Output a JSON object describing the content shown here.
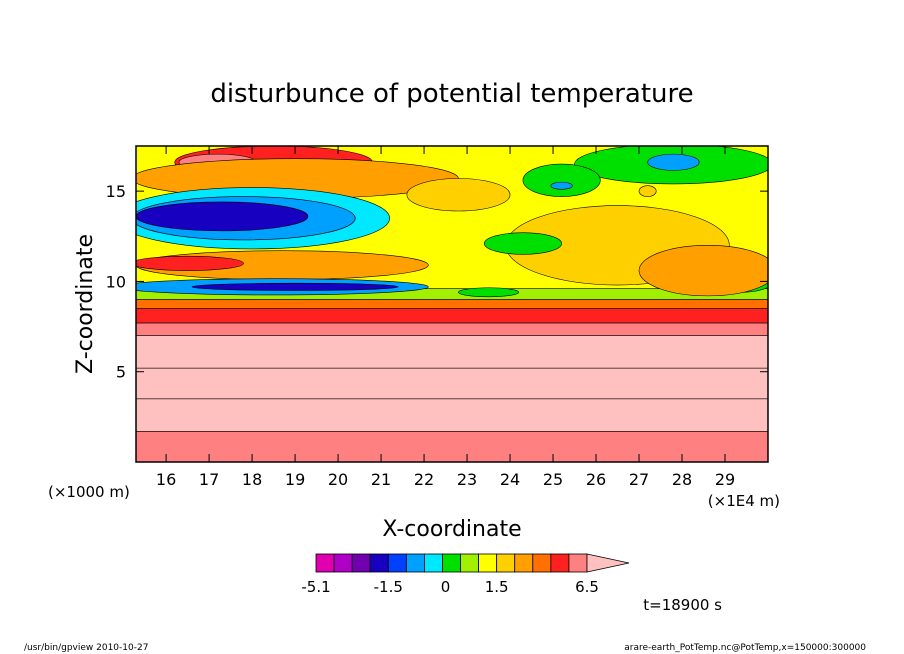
{
  "chart_data": {
    "type": "heatmap",
    "title": "disturbunce of potential temperature",
    "xlabel": "X-coordinate",
    "ylabel": "Z-coordinate",
    "x_unit_left": "(×1000 m)",
    "x_unit_right": "(×1E4 m)",
    "xlim": [
      15.3,
      30.0
    ],
    "ylim": [
      0.0,
      17.5
    ],
    "x_ticks": [
      16,
      17,
      18,
      19,
      20,
      21,
      22,
      23,
      24,
      25,
      26,
      27,
      28,
      29
    ],
    "y_ticks": [
      5,
      10,
      15
    ],
    "time_label": "t=18900 s",
    "footer_left": "/usr/bin/gpview   2010-10-27",
    "footer_right": "arare-earth_PotTemp.nc@PotTemp,x=150000:300000",
    "colorbar": {
      "levels": [
        -5.1,
        -4.1,
        -3.1,
        -2.1,
        -1.5,
        -1.1,
        -0.6,
        -0.1,
        0.5,
        1.0,
        1.5,
        2.5,
        3.5,
        4.5,
        5.5,
        6.5
      ],
      "tick_labels": [
        "-5.1",
        "-1.5",
        "0",
        "1.5",
        "6.5"
      ],
      "colors": [
        "#e000b0",
        "#b000c8",
        "#7000b0",
        "#1800c0",
        "#0040ff",
        "#00a0ff",
        "#00e8ff",
        "#00e000",
        "#a0f000",
        "#ffff00",
        "#ffd000",
        "#ffa000",
        "#ff7000",
        "#ff2020",
        "#ff8080",
        "#ffc0c0"
      ]
    },
    "bands": [
      {
        "z": [
          0.0,
          1.7
        ],
        "value": 4.5
      },
      {
        "z": [
          1.7,
          3.5
        ],
        "value": 5.5
      },
      {
        "z": [
          3.5,
          5.2
        ],
        "value": 6.5
      },
      {
        "z": [
          5.2,
          7.0
        ],
        "value": 5.5
      },
      {
        "z": [
          7.0,
          7.7
        ],
        "value": 4.5
      },
      {
        "z": [
          7.7,
          8.5
        ],
        "value": 3.5
      },
      {
        "z": [
          8.5,
          9.0
        ],
        "value": 2.5
      },
      {
        "z": [
          9.0,
          9.6
        ],
        "value": -0.1
      },
      {
        "z": [
          9.6,
          17.5
        ],
        "value": 0.5
      }
    ],
    "blobs": [
      {
        "x": 18.5,
        "z": 16.6,
        "rx": 2.3,
        "rz": 0.9,
        "value": 3.5
      },
      {
        "x": 17.2,
        "z": 16.6,
        "rx": 0.9,
        "rz": 0.45,
        "value": 4.5
      },
      {
        "x": 19.0,
        "z": 15.7,
        "rx": 3.8,
        "rz": 1.1,
        "value": 1.5
      },
      {
        "x": 18.0,
        "z": 13.5,
        "rx": 3.2,
        "rz": 1.7,
        "value": -1.1
      },
      {
        "x": 17.8,
        "z": 13.5,
        "rx": 2.6,
        "rz": 1.2,
        "value": -1.5
      },
      {
        "x": 17.3,
        "z": 13.6,
        "rx": 2.0,
        "rz": 0.8,
        "value": -3.1
      },
      {
        "x": 18.7,
        "z": 10.9,
        "rx": 3.4,
        "rz": 0.8,
        "value": 1.5
      },
      {
        "x": 16.5,
        "z": 11.0,
        "rx": 1.3,
        "rz": 0.4,
        "value": 3.5
      },
      {
        "x": 18.5,
        "z": 9.7,
        "rx": 3.6,
        "rz": 0.45,
        "value": -1.5
      },
      {
        "x": 19.0,
        "z": 9.7,
        "rx": 2.4,
        "rz": 0.2,
        "value": -3.1
      },
      {
        "x": 23.5,
        "z": 9.4,
        "rx": 0.7,
        "rz": 0.25,
        "value": -0.6
      },
      {
        "x": 27.8,
        "z": 16.5,
        "rx": 2.3,
        "rz": 1.1,
        "value": -0.6
      },
      {
        "x": 27.8,
        "z": 16.6,
        "rx": 0.6,
        "rz": 0.45,
        "value": -1.5
      },
      {
        "x": 25.2,
        "z": 15.6,
        "rx": 0.9,
        "rz": 0.9,
        "value": -0.6
      },
      {
        "x": 25.2,
        "z": 15.3,
        "rx": 0.25,
        "rz": 0.2,
        "value": -1.5
      },
      {
        "x": 22.8,
        "z": 14.8,
        "rx": 1.2,
        "rz": 0.9,
        "value": 1.0
      },
      {
        "x": 26.5,
        "z": 12.0,
        "rx": 2.6,
        "rz": 2.2,
        "value": 1.0
      },
      {
        "x": 29.4,
        "z": 10.2,
        "rx": 0.8,
        "rz": 0.8,
        "value": -0.6
      },
      {
        "x": 28.6,
        "z": 10.6,
        "rx": 1.6,
        "rz": 1.4,
        "value": 1.5
      },
      {
        "x": 24.3,
        "z": 12.1,
        "rx": 0.9,
        "rz": 0.6,
        "value": -0.6
      },
      {
        "x": 27.2,
        "z": 15.0,
        "rx": 0.2,
        "rz": 0.3,
        "value": 1.0
      }
    ]
  }
}
